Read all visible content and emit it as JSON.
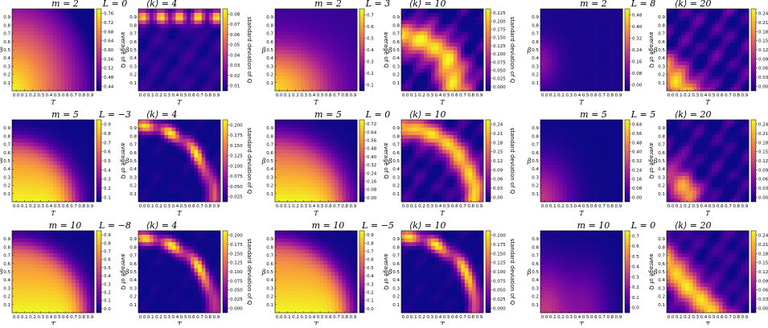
{
  "chart_data": {
    "type": "heatmap",
    "xlabel": "T",
    "ylabel": "β",
    "x_ticks": [
      "0.0",
      "0.1",
      "0.2",
      "0.3",
      "0.4",
      "0.5",
      "0.6",
      "0.7",
      "0.8",
      "0.9"
    ],
    "y_ticks": [
      "0.1",
      "0.2",
      "0.3",
      "0.4",
      "0.5",
      "0.6",
      "0.7",
      "0.8",
      "0.9"
    ],
    "avg_label": "average of Q",
    "std_label": "standard deviation of Q",
    "colormap": [
      "#0d0887",
      "#5b02a3",
      "#9a179b",
      "#cb4678",
      "#eb7852",
      "#fbb32f",
      "#f0f921"
    ],
    "groups": [
      {
        "m": "m = 2",
        "L": "L = 0",
        "k": "⟨k⟩ = 4",
        "pattern": "d2_0",
        "avg_ticks": [
          "0.44",
          "0.48",
          "0.52",
          "0.56",
          "0.60",
          "0.64",
          "0.68",
          "0.72",
          "0.76"
        ],
        "avg_range": [
          0.43,
          0.78
        ],
        "std_ticks": [
          "0.01",
          "0.02",
          "0.03",
          "0.04",
          "0.05",
          "0.06",
          "0.07",
          "0.08"
        ],
        "std_range": [
          0.005,
          0.09
        ]
      },
      {
        "m": "m = 2",
        "L": "L = 3",
        "k": "⟨k⟩ = 10",
        "pattern": "d2_3",
        "avg_ticks": [
          "0.1",
          "0.2",
          "0.3",
          "0.4",
          "0.5",
          "0.6",
          "0.7"
        ],
        "avg_range": [
          0.05,
          0.75
        ],
        "std_ticks": [
          "0.000",
          "0.025",
          "0.050",
          "0.075",
          "0.100",
          "0.125",
          "0.150",
          "0.175",
          "0.200",
          "0.225"
        ],
        "std_range": [
          0,
          0.23
        ]
      },
      {
        "m": "m = 2",
        "L": "L = 8",
        "k": "⟨k⟩ = 20",
        "pattern": "d2_8",
        "avg_ticks": [
          "0.00",
          "0.08",
          "0.16",
          "0.24",
          "0.32",
          "0.40",
          "0.48"
        ],
        "avg_range": [
          0,
          0.5
        ],
        "std_ticks": [
          "0.00",
          "0.03",
          "0.06",
          "0.09",
          "0.12",
          "0.15",
          "0.18",
          "0.21",
          "0.24"
        ],
        "std_range": [
          0,
          0.25
        ]
      },
      {
        "m": "m = 5",
        "L": "L = −3",
        "k": "⟨k⟩ = 4",
        "pattern": "d5_n3",
        "avg_ticks": [
          "0.1",
          "0.2",
          "0.3",
          "0.4",
          "0.5",
          "0.6",
          "0.7",
          "0.8",
          "0.9"
        ],
        "avg_range": [
          0.05,
          0.95
        ],
        "std_ticks": [
          "0.025",
          "0.050",
          "0.075",
          "0.100",
          "0.125",
          "0.150",
          "0.175",
          "0.200"
        ],
        "std_range": [
          0,
          0.205
        ]
      },
      {
        "m": "m = 5",
        "L": "L = 0",
        "k": "⟨k⟩ = 10",
        "pattern": "d5_0",
        "avg_ticks": [
          "0.00",
          "0.08",
          "0.16",
          "0.24",
          "0.32",
          "0.40",
          "0.48",
          "0.56",
          "0.64",
          "0.72"
        ],
        "avg_range": [
          0,
          0.74
        ],
        "std_ticks": [
          "0.00",
          "0.03",
          "0.06",
          "0.09",
          "0.12",
          "0.15",
          "0.18",
          "0.21",
          "0.24"
        ],
        "std_range": [
          0,
          0.25
        ]
      },
      {
        "m": "m = 5",
        "L": "L = 5",
        "k": "⟨k⟩ = 20",
        "pattern": "d5_5",
        "avg_ticks": [
          "0.00",
          "0.08",
          "0.16",
          "0.24",
          "0.32",
          "0.40",
          "0.48",
          "0.56",
          "0.64"
        ],
        "avg_range": [
          0,
          0.66
        ],
        "std_ticks": [
          "0.00",
          "0.03",
          "0.06",
          "0.09",
          "0.12",
          "0.15",
          "0.18",
          "0.21",
          "0.24"
        ],
        "std_range": [
          0,
          0.25
        ]
      },
      {
        "m": "m = 10",
        "L": "L = −8",
        "k": "⟨k⟩ = 4",
        "pattern": "d10_n8",
        "avg_ticks": [
          "0.0",
          "0.1",
          "0.2",
          "0.3",
          "0.4",
          "0.5",
          "0.6",
          "0.7",
          "0.8",
          "0.9"
        ],
        "avg_range": [
          0,
          0.95
        ],
        "std_ticks": [
          "0.000",
          "0.025",
          "0.050",
          "0.075",
          "0.100",
          "0.125",
          "0.150",
          "0.175",
          "0.200"
        ],
        "std_range": [
          0,
          0.21
        ]
      },
      {
        "m": "m = 10",
        "L": "L = −5",
        "k": "⟨k⟩ = 10",
        "pattern": "d10_n5",
        "avg_ticks": [
          "0.0",
          "0.1",
          "0.2",
          "0.3",
          "0.4",
          "0.5",
          "0.6",
          "0.7",
          "0.8",
          "0.9"
        ],
        "avg_range": [
          0,
          0.95
        ],
        "std_ticks": [
          "0.000",
          "0.025",
          "0.050",
          "0.075",
          "0.100",
          "0.125",
          "0.150",
          "0.175",
          "0.200"
        ],
        "std_range": [
          0,
          0.21
        ]
      },
      {
        "m": "m = 10",
        "L": "L = 0",
        "k": "⟨k⟩ = 20",
        "pattern": "d10_0",
        "avg_ticks": [
          "0.0",
          "0.1",
          "0.2",
          "0.3",
          "0.4",
          "0.5",
          "0.6",
          "0.7"
        ],
        "avg_range": [
          0,
          0.75
        ],
        "std_ticks": [
          "0.00",
          "0.03",
          "0.06",
          "0.09",
          "0.12",
          "0.15",
          "0.18",
          "0.21",
          "0.24"
        ],
        "std_range": [
          0,
          0.25
        ]
      }
    ]
  }
}
